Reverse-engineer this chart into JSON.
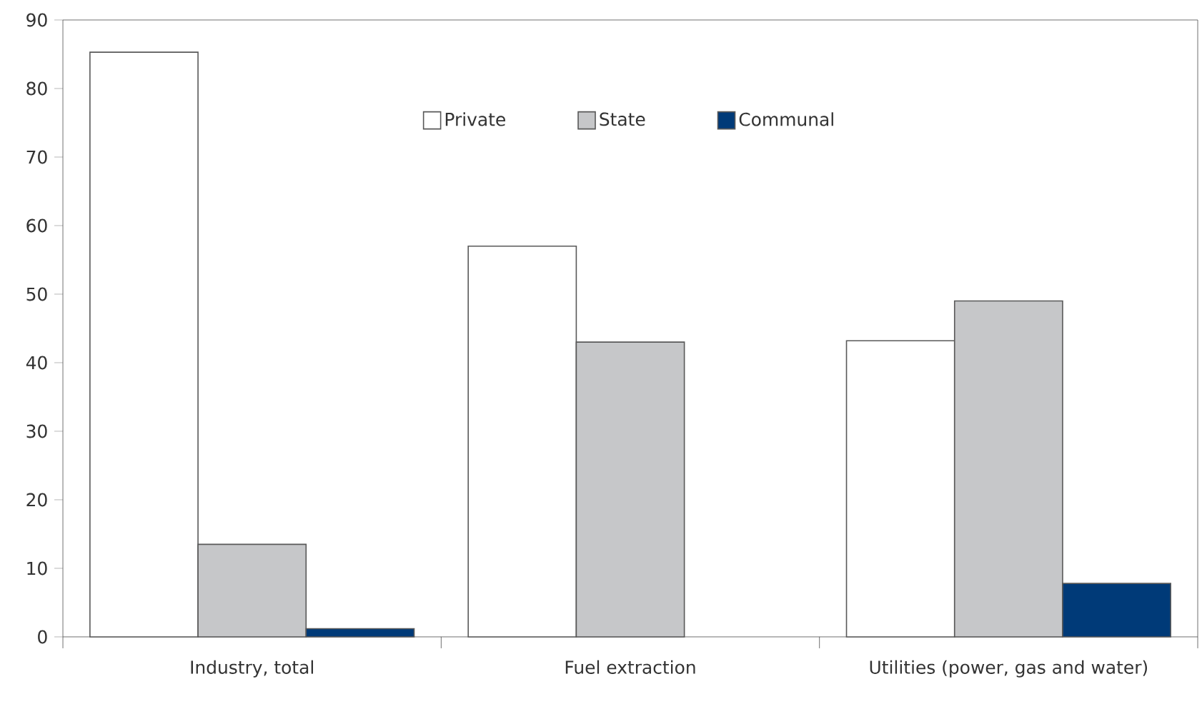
{
  "chart_data": {
    "type": "bar",
    "categories": [
      "Industry, total",
      "Fuel extraction",
      "Utilities (power, gas and water)"
    ],
    "series": [
      {
        "name": "Private",
        "color": "#ffffff",
        "values": [
          85.3,
          57,
          43.2
        ]
      },
      {
        "name": "State",
        "color": "#c6c7c9",
        "values": [
          13.5,
          43,
          49
        ]
      },
      {
        "name": "Communal",
        "color": "#003a78",
        "values": [
          1.2,
          null,
          7.8
        ]
      }
    ],
    "ylim": [
      0,
      90
    ],
    "yticks": [
      0,
      10,
      20,
      30,
      40,
      50,
      60,
      70,
      80,
      90
    ],
    "legend": "top"
  }
}
